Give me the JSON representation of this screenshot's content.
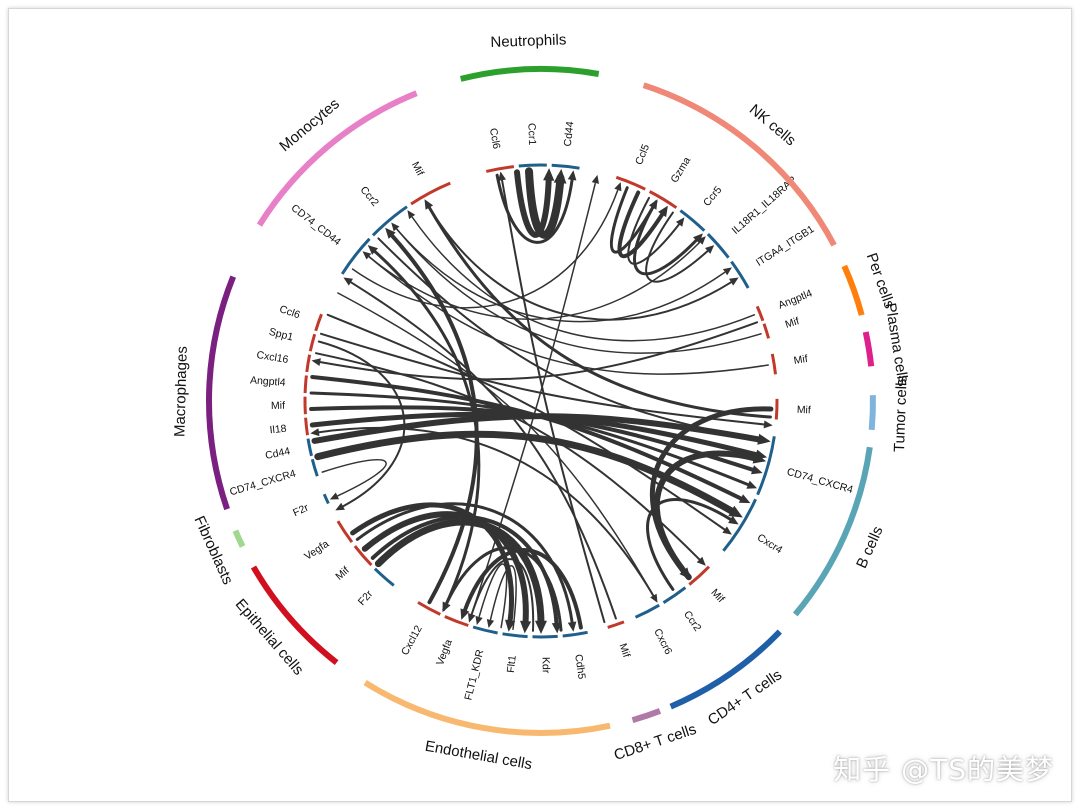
{
  "watermark": "知乎 @TS的美梦",
  "chart_data": {
    "type": "chord",
    "title": "",
    "groups": [
      {
        "name": "Neutrophils",
        "color": "#2ca02c",
        "start": 346,
        "end": 10,
        "genes": [
          {
            "label": "Ccl6",
            "color": "#c0392b"
          },
          {
            "label": "Ccr1",
            "color": "#1f5f8b"
          },
          {
            "label": "Cd44",
            "color": "#1f5f8b"
          }
        ]
      },
      {
        "name": "NK cells",
        "color": "#f08878",
        "start": 18,
        "end": 62,
        "genes": [
          {
            "label": "Ccl5",
            "color": "#c0392b"
          },
          {
            "label": "Gzma",
            "color": "#c0392b"
          },
          {
            "label": "Ccr5",
            "color": "#1f5f8b"
          },
          {
            "label": "IL18R1_IL18RAP",
            "color": "#1f5f8b"
          },
          {
            "label": "ITGA4_ITGB1",
            "color": "#1f5f8b"
          }
        ]
      },
      {
        "name": "Per cells",
        "color": "#ff7f0e",
        "start": 66,
        "end": 75,
        "genes": [
          {
            "label": "Angptl4",
            "color": "#c0392b"
          },
          {
            "label": "Mif",
            "color": "#c0392b"
          }
        ]
      },
      {
        "name": "Plasma cells",
        "color": "#e0208a",
        "start": 78,
        "end": 84,
        "genes": [
          {
            "label": "Mif",
            "color": "#c0392b"
          }
        ]
      },
      {
        "name": "Tumor cells",
        "color": "#80b4dc",
        "start": 89,
        "end": 95,
        "genes": [
          {
            "label": "Mif",
            "color": "#c0392b"
          }
        ]
      },
      {
        "name": "B cells",
        "color": "#5aa5b5",
        "start": 98,
        "end": 130,
        "genes": [
          {
            "label": "CD74_CXCR4",
            "color": "#1f5f8b"
          },
          {
            "label": "Cxcr4",
            "color": "#1f5f8b"
          }
        ]
      },
      {
        "name": "CD4+ T cells",
        "color": "#1f5fa8",
        "start": 134,
        "end": 157,
        "genes": [
          {
            "label": "Mif",
            "color": "#c0392b"
          },
          {
            "label": "Ccr2",
            "color": "#1f5f8b"
          },
          {
            "label": "Cxcr6",
            "color": "#1f5f8b"
          }
        ]
      },
      {
        "name": "CD8+ T cells",
        "color": "#b07aa8",
        "start": 159,
        "end": 164,
        "genes": [
          {
            "label": "Mif",
            "color": "#c0392b"
          }
        ]
      },
      {
        "name": "Endothelial cells",
        "color": "#f8b870",
        "start": 168,
        "end": 212,
        "genes": [
          {
            "label": "Cdh5",
            "color": "#1f5f8b"
          },
          {
            "label": "Kdr",
            "color": "#1f5f8b"
          },
          {
            "label": "Flt1",
            "color": "#1f5f8b"
          },
          {
            "label": "FLT1_KDR",
            "color": "#1f5f8b"
          },
          {
            "label": "Vegfa",
            "color": "#c0392b"
          },
          {
            "label": "Cxcl12",
            "color": "#c0392b"
          }
        ]
      },
      {
        "name": "Epithelial cells",
        "color": "#d0101e",
        "start": 218,
        "end": 240,
        "genes": [
          {
            "label": "F2r",
            "color": "#1f5f8b"
          },
          {
            "label": "Mif",
            "color": "#c0392b"
          },
          {
            "label": "Vegfa",
            "color": "#c0392b"
          }
        ]
      },
      {
        "name": "Fibroblasts",
        "color": "#a0d890",
        "start": 244,
        "end": 247,
        "genes": [
          {
            "label": "F2r",
            "color": "#1f5f8b"
          }
        ]
      },
      {
        "name": "Macrophages",
        "color": "#7a2080",
        "start": 251,
        "end": 292,
        "genes": [
          {
            "label": "CD74_CXCR4",
            "color": "#1f5f8b"
          },
          {
            "label": "Cd44",
            "color": "#1f5f8b"
          },
          {
            "label": "Il18",
            "color": "#c0392b"
          },
          {
            "label": "Mif",
            "color": "#c0392b"
          },
          {
            "label": "Angptl4",
            "color": "#c0392b"
          },
          {
            "label": "Cxcl16",
            "color": "#c0392b"
          },
          {
            "label": "Spp1",
            "color": "#c0392b"
          },
          {
            "label": "Ccl6",
            "color": "#c0392b"
          }
        ]
      },
      {
        "name": "Monocytes",
        "color": "#e880c8",
        "start": 302,
        "end": 338,
        "genes": [
          {
            "label": "CD74_CD44",
            "color": "#1f5f8b"
          },
          {
            "label": "Ccr2",
            "color": "#1f5f8b"
          },
          {
            "label": "Mif",
            "color": "#c0392b"
          }
        ]
      }
    ],
    "links": [
      {
        "from": 354,
        "to": 2,
        "w": 6
      },
      {
        "from": 357,
        "to": 5,
        "w": 8
      },
      {
        "from": 349,
        "to": 8,
        "w": 3
      },
      {
        "from": 22,
        "to": 30,
        "w": 3
      },
      {
        "from": 25,
        "to": 33,
        "w": 4
      },
      {
        "from": 28,
        "to": 38,
        "w": 2
      },
      {
        "from": 30,
        "to": 44,
        "w": 3
      },
      {
        "from": 35,
        "to": 48,
        "w": 2
      },
      {
        "from": 260,
        "to": 100,
        "w": 6
      },
      {
        "from": 264,
        "to": 104,
        "w": 5
      },
      {
        "from": 268,
        "to": 108,
        "w": 4
      },
      {
        "from": 272,
        "to": 112,
        "w": 3
      },
      {
        "from": 276,
        "to": 116,
        "w": 4
      },
      {
        "from": 256,
        "to": 120,
        "w": 7
      },
      {
        "from": 287,
        "to": 96,
        "w": 2
      },
      {
        "from": 292,
        "to": 125,
        "w": 2
      },
      {
        "from": 70,
        "to": 280,
        "w": 2
      },
      {
        "from": 73,
        "to": 320,
        "w": 1.5
      },
      {
        "from": 81,
        "to": 310,
        "w": 1.5
      },
      {
        "from": 92,
        "to": 140,
        "w": 5
      },
      {
        "from": 94,
        "to": 330,
        "w": 3
      },
      {
        "from": 68,
        "to": 325,
        "w": 1.5
      },
      {
        "from": 140,
        "to": 105,
        "w": 6
      },
      {
        "from": 145,
        "to": 122,
        "w": 3
      },
      {
        "from": 161,
        "to": 302,
        "w": 2
      },
      {
        "from": 170,
        "to": 200,
        "w": 4
      },
      {
        "from": 175,
        "to": 205,
        "w": 3
      },
      {
        "from": 182,
        "to": 198,
        "w": 2
      },
      {
        "from": 187,
        "to": 193,
        "w": 1.5
      },
      {
        "from": 190,
        "to": 196,
        "w": 1.5
      },
      {
        "from": 225,
        "to": 180,
        "w": 7
      },
      {
        "from": 230,
        "to": 184,
        "w": 6
      },
      {
        "from": 235,
        "to": 188,
        "w": 5
      },
      {
        "from": 227,
        "to": 176,
        "w": 4
      },
      {
        "from": 233,
        "to": 172,
        "w": 3
      },
      {
        "from": 209,
        "to": 318,
        "w": 4
      },
      {
        "from": 205,
        "to": 312,
        "w": 3
      },
      {
        "from": 198,
        "to": 14,
        "w": 1.5
      },
      {
        "from": 305,
        "to": 20,
        "w": 1.5
      },
      {
        "from": 310,
        "to": 45,
        "w": 1.5
      },
      {
        "from": 320,
        "to": 55,
        "w": 1.5
      },
      {
        "from": 330,
        "to": 58,
        "w": 2
      },
      {
        "from": 315,
        "to": 100,
        "w": 2
      },
      {
        "from": 298,
        "to": 150,
        "w": 1.5
      },
      {
        "from": 282,
        "to": 135,
        "w": 2
      },
      {
        "from": 285,
        "to": 242,
        "w": 2
      },
      {
        "from": 252,
        "to": 245,
        "w": 1.5
      },
      {
        "from": 164,
        "to": 350,
        "w": 2
      },
      {
        "from": 150,
        "to": 262,
        "w": 2
      }
    ]
  }
}
